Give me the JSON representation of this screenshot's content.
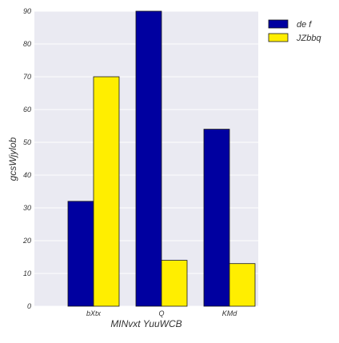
{
  "chart_data": {
    "type": "bar",
    "categories": [
      "bXtx",
      "Q",
      "KMd"
    ],
    "series": [
      {
        "name": "de f",
        "values": [
          32,
          90,
          54
        ],
        "color": "#0000a0"
      },
      {
        "name": "JZbbq",
        "values": [
          70,
          14,
          13
        ],
        "color": "#ffee00"
      }
    ],
    "xlabel": "MINvxt YuuWCB",
    "ylabel": "gcsWjylob",
    "ylim": [
      0,
      90
    ],
    "yticks": [
      0,
      10,
      20,
      30,
      40,
      50,
      60,
      70,
      80,
      90
    ],
    "grid": true,
    "legend_position": "outside-top-right",
    "background_color": "#eaeaf2",
    "bar_edge_color": "#1a1a1a"
  }
}
